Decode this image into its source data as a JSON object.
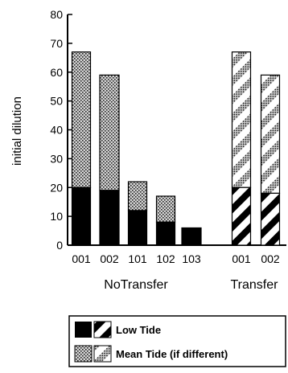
{
  "chart_data": {
    "type": "bar",
    "stacked": true,
    "ylabel": "initial dilution",
    "ylim": [
      0,
      80
    ],
    "yticks": [
      0,
      10,
      20,
      30,
      40,
      50,
      60,
      70,
      80
    ],
    "groups": [
      {
        "label": "NoTransfer",
        "categories": [
          "001",
          "002",
          "101",
          "102",
          "103"
        ]
      },
      {
        "label": "Transfer",
        "categories": [
          "001",
          "002"
        ]
      }
    ],
    "bars": [
      {
        "group": "NoTransfer",
        "category": "001",
        "low": 20,
        "mean": 67,
        "style": "solid"
      },
      {
        "group": "NoTransfer",
        "category": "002",
        "low": 19,
        "mean": 59,
        "style": "solid"
      },
      {
        "group": "NoTransfer",
        "category": "101",
        "low": 12,
        "mean": 22,
        "style": "solid"
      },
      {
        "group": "NoTransfer",
        "category": "102",
        "low": 8,
        "mean": 17,
        "style": "solid"
      },
      {
        "group": "NoTransfer",
        "category": "103",
        "low": 6,
        "mean": 6,
        "style": "solid"
      },
      {
        "group": "Transfer",
        "category": "001",
        "low": 20,
        "mean": 67,
        "style": "hatched"
      },
      {
        "group": "Transfer",
        "category": "002",
        "low": 18,
        "mean": 59,
        "style": "hatched"
      }
    ],
    "legend": [
      {
        "label": "Low Tide",
        "pattern": "low"
      },
      {
        "label": "Mean Tide (if different)",
        "pattern": "mean"
      }
    ],
    "legend_position": "bottom",
    "grid": false
  }
}
